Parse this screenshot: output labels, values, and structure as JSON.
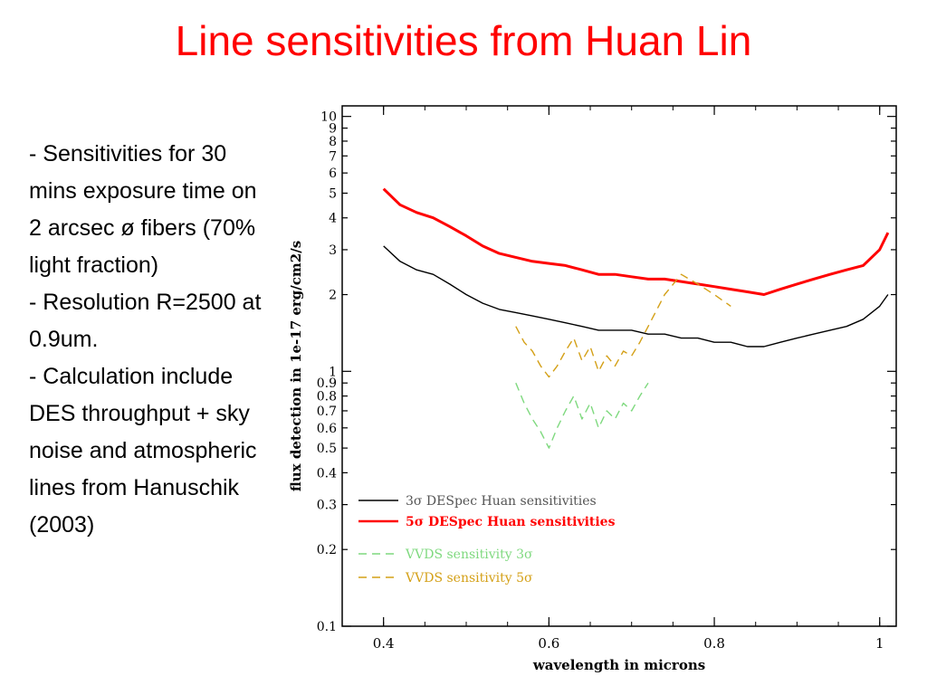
{
  "slide": {
    "title": "Line sensitivities from Huan Lin",
    "bullets": [
      "- Sensitivities for 30 mins exposure time on 2 arcsec ø fibers (70% light fraction)",
      "- Resolution R=2500 at 0.9um.",
      "- Calculation include DES throughput + sky noise and atmospheric lines from Hanuschik (2003)"
    ]
  },
  "chart_data": {
    "type": "line",
    "xlabel": "wavelength in microns",
    "ylabel": "flux detection in 1e-17 erg/cm2/s",
    "xlim": [
      0.35,
      1.02
    ],
    "ylim": [
      0.1,
      11
    ],
    "yscale": "log",
    "xticks": [
      0.4,
      0.6,
      0.8,
      1
    ],
    "xtick_labels": [
      "0.4",
      "0.6",
      "0.8",
      "1"
    ],
    "yticks": [
      0.1,
      0.2,
      0.3,
      0.4,
      0.5,
      0.6,
      0.7,
      0.8,
      0.9,
      1,
      2,
      3,
      4,
      5,
      6,
      7,
      8,
      9,
      10
    ],
    "ytick_labels": [
      "0.1",
      "0.2",
      "0.3",
      "0.4",
      "0.5",
      "0.6",
      "0.7",
      "0.8",
      "0.9",
      "1",
      "2",
      "3",
      "4",
      "5",
      "6",
      "7",
      "8",
      "9",
      "10"
    ],
    "legend_position": "bottom-left",
    "series": [
      {
        "name": "3σ DESpec Huan sensitivities",
        "color": "#000000",
        "style": "solid",
        "x": [
          0.4,
          0.42,
          0.44,
          0.46,
          0.48,
          0.5,
          0.52,
          0.54,
          0.56,
          0.58,
          0.6,
          0.62,
          0.64,
          0.66,
          0.68,
          0.7,
          0.72,
          0.74,
          0.76,
          0.78,
          0.8,
          0.82,
          0.84,
          0.86,
          0.88,
          0.9,
          0.92,
          0.94,
          0.96,
          0.98,
          1.0,
          1.01
        ],
        "y": [
          3.1,
          2.7,
          2.5,
          2.4,
          2.2,
          2.0,
          1.85,
          1.75,
          1.7,
          1.65,
          1.6,
          1.55,
          1.5,
          1.45,
          1.45,
          1.45,
          1.4,
          1.4,
          1.35,
          1.35,
          1.3,
          1.3,
          1.25,
          1.25,
          1.3,
          1.35,
          1.4,
          1.45,
          1.5,
          1.6,
          1.8,
          2.0
        ]
      },
      {
        "name": "5σ DESpec Huan sensitivities",
        "color": "#ff0000",
        "style": "solid",
        "x": [
          0.4,
          0.42,
          0.44,
          0.46,
          0.48,
          0.5,
          0.52,
          0.54,
          0.56,
          0.58,
          0.6,
          0.62,
          0.64,
          0.66,
          0.68,
          0.7,
          0.72,
          0.74,
          0.76,
          0.78,
          0.8,
          0.82,
          0.84,
          0.86,
          0.88,
          0.9,
          0.92,
          0.94,
          0.96,
          0.98,
          1.0,
          1.01
        ],
        "y": [
          5.2,
          4.5,
          4.2,
          4.0,
          3.7,
          3.4,
          3.1,
          2.9,
          2.8,
          2.7,
          2.65,
          2.6,
          2.5,
          2.4,
          2.4,
          2.35,
          2.3,
          2.3,
          2.25,
          2.2,
          2.15,
          2.1,
          2.05,
          2.0,
          2.1,
          2.2,
          2.3,
          2.4,
          2.5,
          2.6,
          3.0,
          3.5
        ]
      },
      {
        "name": "VVDS sensitivity 3σ",
        "color": "#7fd97f",
        "style": "dashed",
        "x": [
          0.56,
          0.57,
          0.58,
          0.59,
          0.6,
          0.61,
          0.62,
          0.63,
          0.64,
          0.65,
          0.66,
          0.67,
          0.68,
          0.69,
          0.7,
          0.71,
          0.72
        ],
        "y": [
          0.9,
          0.75,
          0.65,
          0.58,
          0.5,
          0.6,
          0.7,
          0.8,
          0.65,
          0.75,
          0.6,
          0.7,
          0.65,
          0.75,
          0.7,
          0.8,
          0.9
        ]
      },
      {
        "name": "VVDS sensitivity 5σ",
        "color": "#d4a017",
        "style": "dashed",
        "x": [
          0.56,
          0.57,
          0.58,
          0.59,
          0.6,
          0.61,
          0.62,
          0.63,
          0.64,
          0.65,
          0.66,
          0.67,
          0.68,
          0.69,
          0.7,
          0.71,
          0.72,
          0.74,
          0.76,
          0.78,
          0.8,
          0.82
        ],
        "y": [
          1.5,
          1.3,
          1.2,
          1.05,
          0.95,
          1.05,
          1.2,
          1.35,
          1.1,
          1.25,
          1.0,
          1.15,
          1.05,
          1.2,
          1.15,
          1.3,
          1.5,
          2.0,
          2.4,
          2.2,
          2.0,
          1.8
        ]
      }
    ]
  }
}
